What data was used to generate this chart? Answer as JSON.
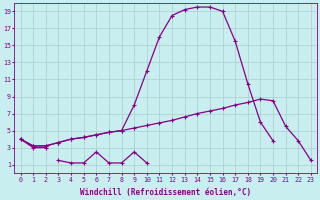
{
  "xlabel": "Windchill (Refroidissement éolien,°C)",
  "background_color": "#c8eef0",
  "line_color": "#880088",
  "grid_color": "#aacccc",
  "ylim": [
    0,
    20
  ],
  "xlim": [
    -0.5,
    23.5
  ],
  "yticks": [
    1,
    3,
    5,
    7,
    9,
    11,
    13,
    15,
    17,
    19
  ],
  "xticks": [
    0,
    1,
    2,
    3,
    4,
    5,
    6,
    7,
    8,
    9,
    10,
    11,
    12,
    13,
    14,
    15,
    16,
    17,
    18,
    19,
    20,
    21,
    22,
    23
  ],
  "line1_x": [
    0,
    1,
    2,
    3,
    4,
    5,
    6,
    7,
    8,
    9,
    10
  ],
  "line1_y": [
    4.0,
    3.0,
    3.0,
    1.5,
    1.2,
    1.2,
    2.5,
    1.2,
    1.2,
    2.5,
    1.2
  ],
  "line1_gaps": [
    2
  ],
  "line2_x": [
    0,
    1,
    2,
    3,
    4,
    5,
    6,
    7,
    8,
    9,
    10,
    11,
    12,
    13,
    14,
    15,
    16,
    17,
    18,
    19,
    20,
    21,
    22,
    23
  ],
  "line2_y": [
    4.0,
    3.2,
    3.2,
    3.6,
    4.0,
    4.2,
    4.5,
    4.8,
    5.0,
    5.3,
    5.6,
    5.9,
    6.2,
    6.6,
    7.0,
    7.3,
    7.6,
    8.0,
    8.3,
    8.7,
    8.5,
    5.5,
    3.8,
    1.5
  ],
  "line3_x": [
    0,
    1,
    2,
    3,
    4,
    5,
    6,
    7,
    8,
    9,
    10,
    11,
    12,
    13,
    14,
    15,
    16,
    17,
    18,
    19,
    20,
    21,
    22,
    23
  ],
  "line3_y": [
    4.0,
    3.2,
    3.2,
    3.6,
    4.0,
    4.2,
    4.5,
    4.8,
    5.0,
    8.0,
    12.0,
    16.0,
    18.5,
    19.2,
    19.5,
    19.5,
    19.0,
    15.5,
    10.5,
    6.0,
    3.8,
    null,
    null,
    null
  ]
}
